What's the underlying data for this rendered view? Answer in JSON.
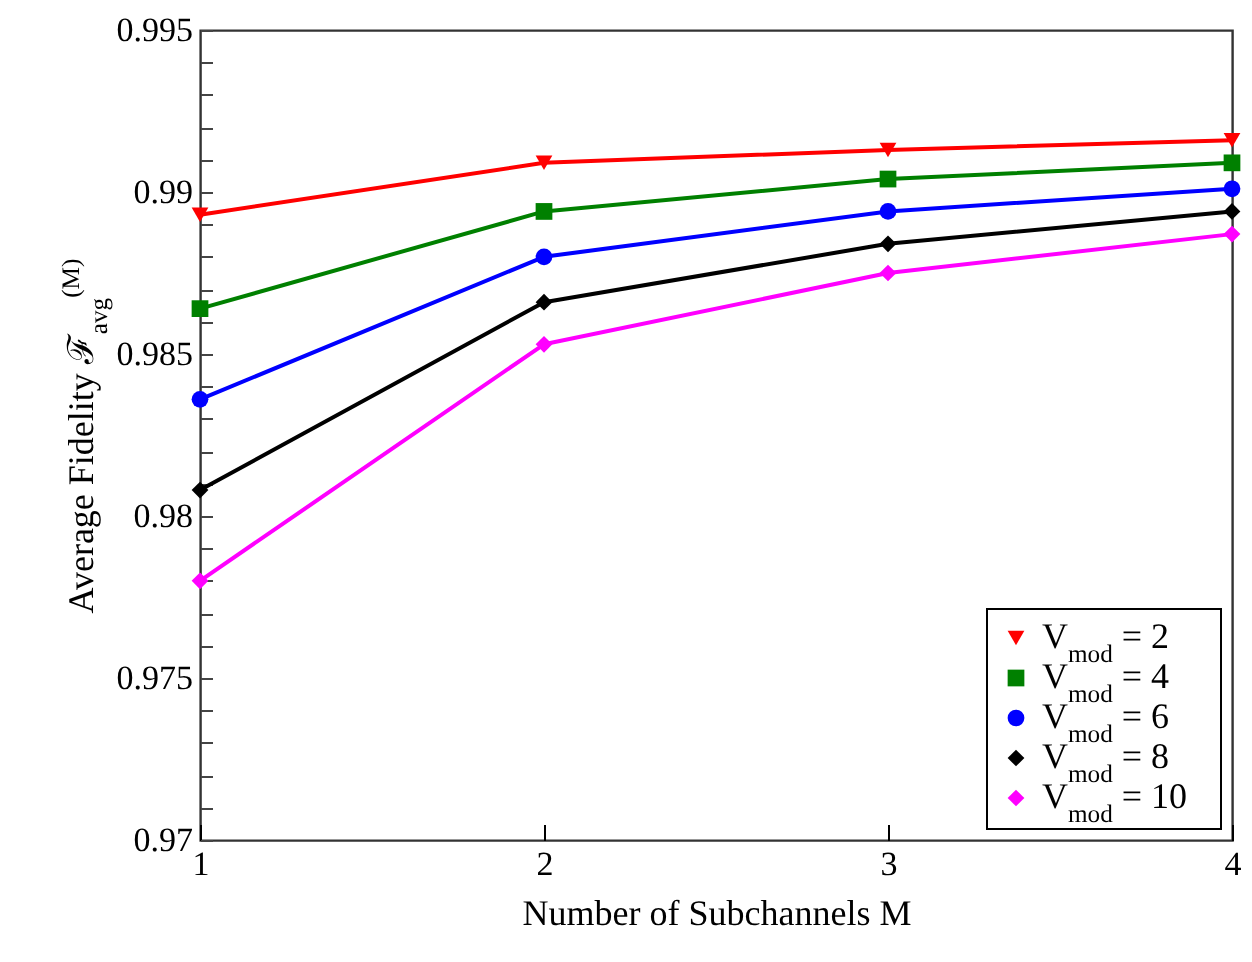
{
  "chart_data": {
    "type": "line",
    "xlabel": "Number of Subchannels M",
    "ylabel": "Average Fidelity ℱ$_{avg}$$^{(M)}$",
    "x": [
      1,
      2,
      3,
      4
    ],
    "xlim": [
      1,
      4
    ],
    "xticks": [
      1,
      2,
      3,
      4
    ],
    "ylim": [
      0.97,
      0.995
    ],
    "yticks": [
      0.97,
      {
        "value": 0.971,
        "label": null
      },
      {
        "value": 0.972,
        "label": null
      },
      {
        "value": 0.973,
        "label": null
      },
      {
        "value": 0.974,
        "label": null
      },
      0.975,
      {
        "value": 0.976,
        "label": null
      },
      {
        "value": 0.977,
        "label": null
      },
      {
        "value": 0.978,
        "label": null
      },
      {
        "value": 0.979,
        "label": null
      },
      0.98,
      {
        "value": 0.981,
        "label": null
      },
      {
        "value": 0.982,
        "label": null
      },
      {
        "value": 0.983,
        "label": null
      },
      {
        "value": 0.984,
        "label": null
      },
      0.985,
      {
        "value": 0.986,
        "label": null
      },
      {
        "value": 0.987,
        "label": null
      },
      {
        "value": 0.988,
        "label": null
      },
      {
        "value": 0.989,
        "label": null
      },
      0.99,
      {
        "value": 0.991,
        "label": null
      },
      {
        "value": 0.992,
        "label": null
      },
      {
        "value": 0.993,
        "label": null
      },
      {
        "value": 0.994,
        "label": null
      },
      0.995
    ],
    "grid": false,
    "legend": "bottom right",
    "line_style": "solid",
    "series": [
      {
        "name": "V$_{mod}$ = 2",
        "color": "#ff0000",
        "marker": "triangle",
        "values": [
          0.9893,
          0.9909,
          0.9913,
          0.9916
        ]
      },
      {
        "name": "V$_{mod}$ = 4",
        "color": "#008000",
        "marker": "square",
        "values": [
          0.9864,
          0.9894,
          0.9904,
          0.9909
        ]
      },
      {
        "name": "V$_{mod}$ = 6",
        "color": "#0000ff",
        "marker": "circle",
        "values": [
          0.9836,
          0.988,
          0.9894,
          0.9901
        ]
      },
      {
        "name": "V$_{mod}$ = 8",
        "color": "#000000",
        "marker": "diamond",
        "values": [
          0.9808,
          0.9866,
          0.9884,
          0.9894
        ]
      },
      {
        "name": "V$_{mod}$ = 10",
        "color": "#ff00ff",
        "marker": "diamond",
        "values": [
          0.978,
          0.9853,
          0.9875,
          0.9887
        ]
      }
    ]
  }
}
